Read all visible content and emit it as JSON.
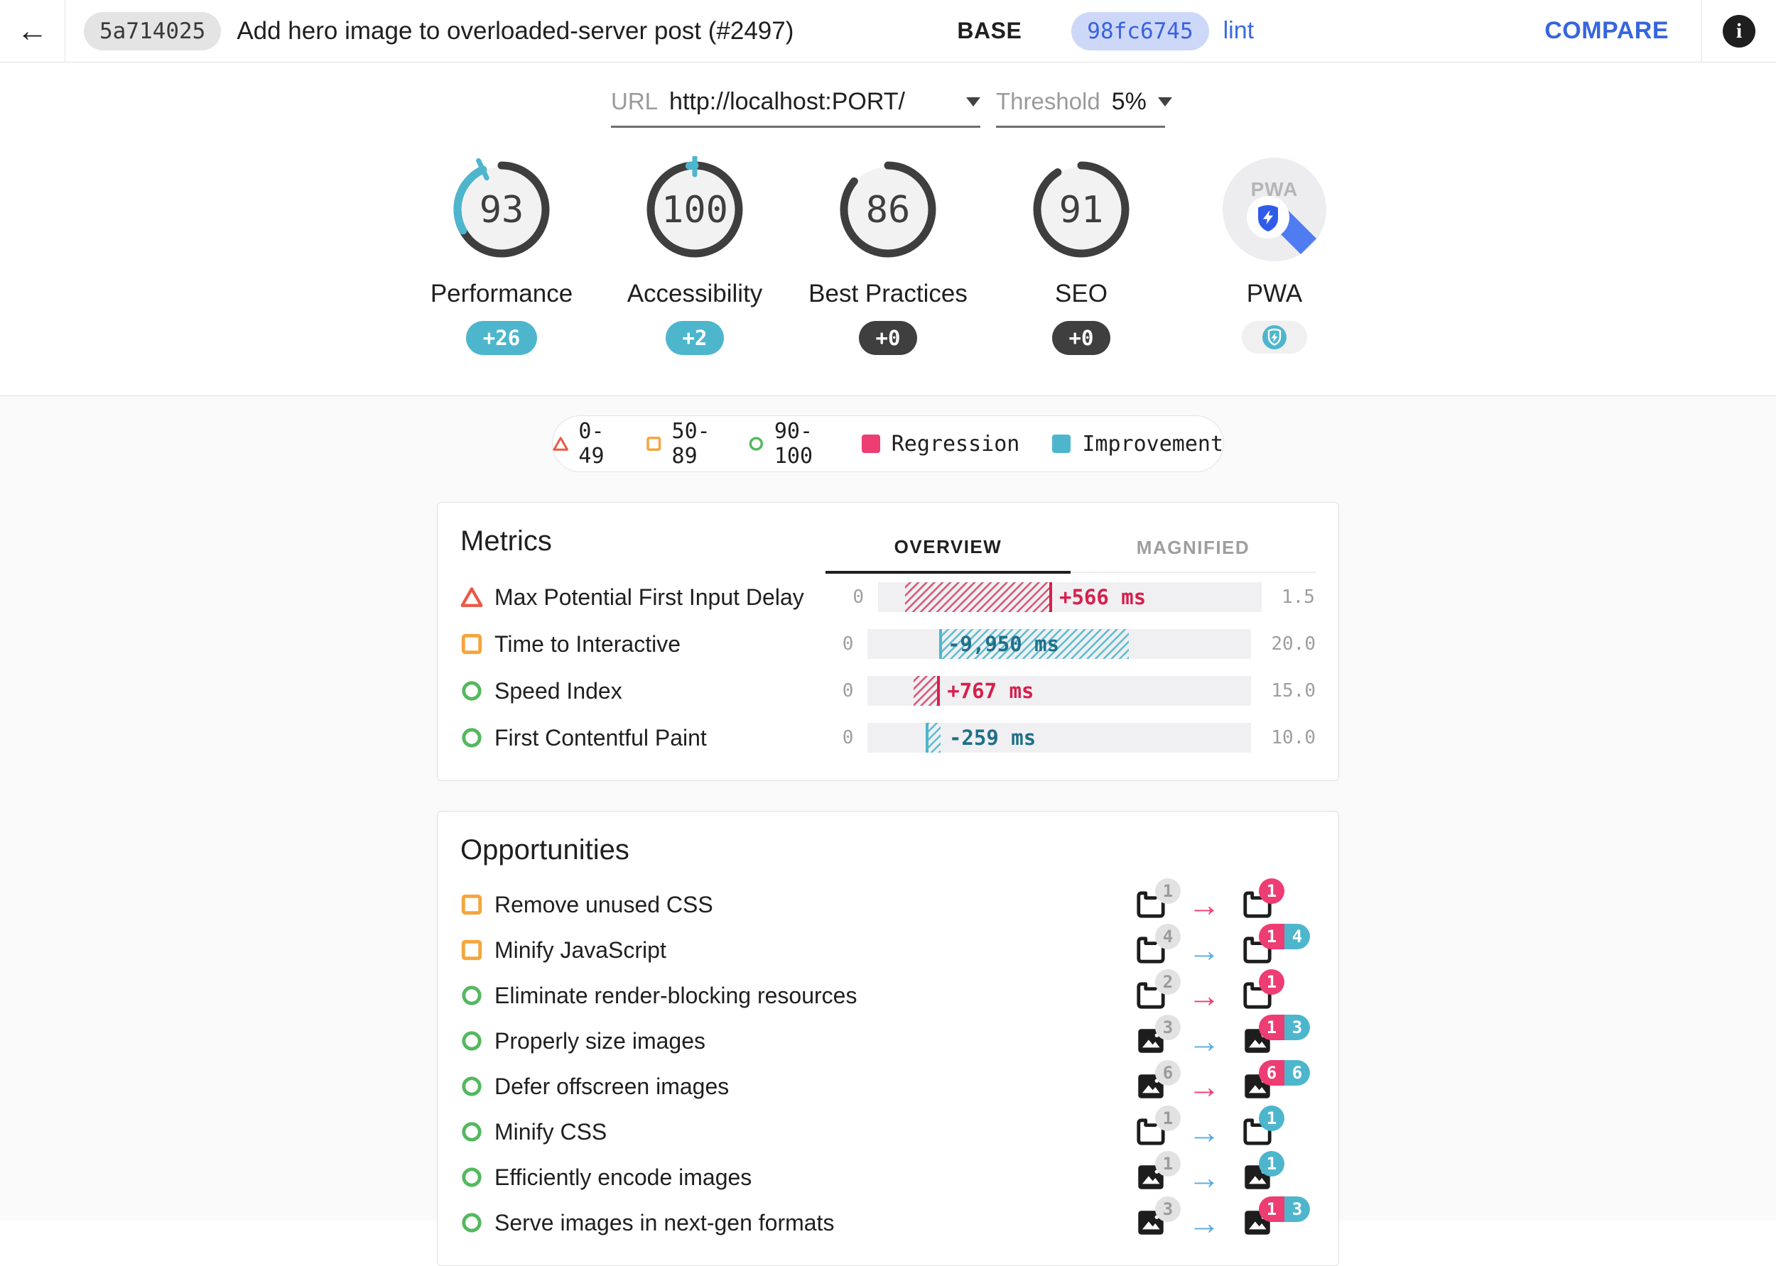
{
  "header": {
    "back_glyph": "←",
    "base": {
      "hash": "5a714025",
      "title": "Add hero image to overloaded-server post (#2497)",
      "label": "BASE"
    },
    "compare": {
      "hash": "98fc6745",
      "branch": "lint"
    },
    "compare_button": "COMPARE",
    "info_glyph": "i"
  },
  "selectors": {
    "url": {
      "label": "URL",
      "value": "http://localhost:PORT/"
    },
    "threshold": {
      "label": "Threshold",
      "value": "5%"
    }
  },
  "scores": [
    {
      "label": "Performance",
      "score": "93",
      "delta": "+26",
      "delta_type": "improvement"
    },
    {
      "label": "Accessibility",
      "score": "100",
      "delta": "+2",
      "delta_type": "improvement"
    },
    {
      "label": "Best Practices",
      "score": "86",
      "delta": "+0",
      "delta_type": "neutral"
    },
    {
      "label": "SEO",
      "score": "91",
      "delta": "+0",
      "delta_type": "neutral"
    },
    {
      "label": "PWA",
      "type": "pwa"
    }
  ],
  "legend": {
    "items": [
      {
        "icon": "triangle",
        "label": "0-49"
      },
      {
        "icon": "square",
        "label": "50-89"
      },
      {
        "icon": "circle",
        "label": "90-100"
      },
      {
        "icon": "swatch-regression",
        "label": "Regression"
      },
      {
        "icon": "swatch-improvement",
        "label": "Improvement"
      }
    ]
  },
  "metrics": {
    "title": "Metrics",
    "tabs": [
      {
        "label": "OVERVIEW",
        "active": true
      },
      {
        "label": "MAGNIFIED",
        "active": false
      }
    ],
    "rows": [
      {
        "rating": "fail",
        "label": "Max Potential First Input Delay",
        "min": "0",
        "max": "1.5",
        "value": "+566 ms",
        "type": "regression",
        "start_pct": 7,
        "end_pct": 45,
        "marker": "end",
        "label_inside": false
      },
      {
        "rating": "average",
        "label": "Time to Interactive",
        "min": "0",
        "max": "20.0",
        "value": "-9,950 ms",
        "type": "improvement",
        "start_pct": 19,
        "end_pct": 68,
        "marker": "start",
        "label_inside": true
      },
      {
        "rating": "pass",
        "label": "Speed Index",
        "min": "0",
        "max": "15.0",
        "value": "+767 ms",
        "type": "regression",
        "start_pct": 12,
        "end_pct": 18.5,
        "marker": "end",
        "label_inside": false
      },
      {
        "rating": "pass",
        "label": "First Contentful Paint",
        "min": "0",
        "max": "10.0",
        "value": "-259 ms",
        "type": "improvement",
        "start_pct": 15.5,
        "end_pct": 19,
        "marker": "start",
        "label_inside": false
      }
    ]
  },
  "opportunities": {
    "title": "Opportunities",
    "rows": [
      {
        "rating": "average",
        "label": "Remove unused CSS",
        "icon": "doc",
        "base_count": "1",
        "arrow": "regression",
        "compare_badges": [
          {
            "type": "regression",
            "count": "1"
          }
        ]
      },
      {
        "rating": "average",
        "label": "Minify JavaScript",
        "icon": "doc",
        "base_count": "4",
        "arrow": "improvement",
        "compare_badges": [
          {
            "type": "regression",
            "count": "1"
          },
          {
            "type": "improvement",
            "count": "4"
          }
        ]
      },
      {
        "rating": "pass",
        "label": "Eliminate render-blocking resources",
        "icon": "doc",
        "base_count": "2",
        "arrow": "regression",
        "compare_badges": [
          {
            "type": "regression",
            "count": "1"
          }
        ]
      },
      {
        "rating": "pass",
        "label": "Properly size images",
        "icon": "img",
        "base_count": "3",
        "arrow": "improvement",
        "compare_badges": [
          {
            "type": "regression",
            "count": "1"
          },
          {
            "type": "improvement",
            "count": "3"
          }
        ]
      },
      {
        "rating": "pass",
        "label": "Defer offscreen images",
        "icon": "img",
        "base_count": "6",
        "arrow": "regression",
        "compare_badges": [
          {
            "type": "regression",
            "count": "6"
          },
          {
            "type": "improvement",
            "count": "6"
          }
        ]
      },
      {
        "rating": "pass",
        "label": "Minify CSS",
        "icon": "doc",
        "base_count": "1",
        "arrow": "improvement",
        "compare_badges": [
          {
            "type": "improvement",
            "count": "1"
          }
        ]
      },
      {
        "rating": "pass",
        "label": "Efficiently encode images",
        "icon": "img",
        "base_count": "1",
        "arrow": "improvement",
        "compare_badges": [
          {
            "type": "improvement",
            "count": "1"
          }
        ]
      },
      {
        "rating": "pass",
        "label": "Serve images in next-gen formats",
        "icon": "img",
        "base_count": "3",
        "arrow": "improvement",
        "compare_badges": [
          {
            "type": "regression",
            "count": "1"
          },
          {
            "type": "improvement",
            "count": "3"
          }
        ]
      }
    ]
  },
  "colors": {
    "improvement": "#4db6cd",
    "improvement_text": "#1f7089",
    "regression": "#ed3d72",
    "regression_text": "#d6204d",
    "pass": "#55b85f",
    "average": "#f5a53c",
    "fail": "#eb5847",
    "neutral_badge": "#3f3f3f",
    "gauge_arc": "#3e3e3e",
    "accent_blue": "#3566dd",
    "arrow_improvement": "#58ade2",
    "pwa_blue": "#2f5be8"
  }
}
